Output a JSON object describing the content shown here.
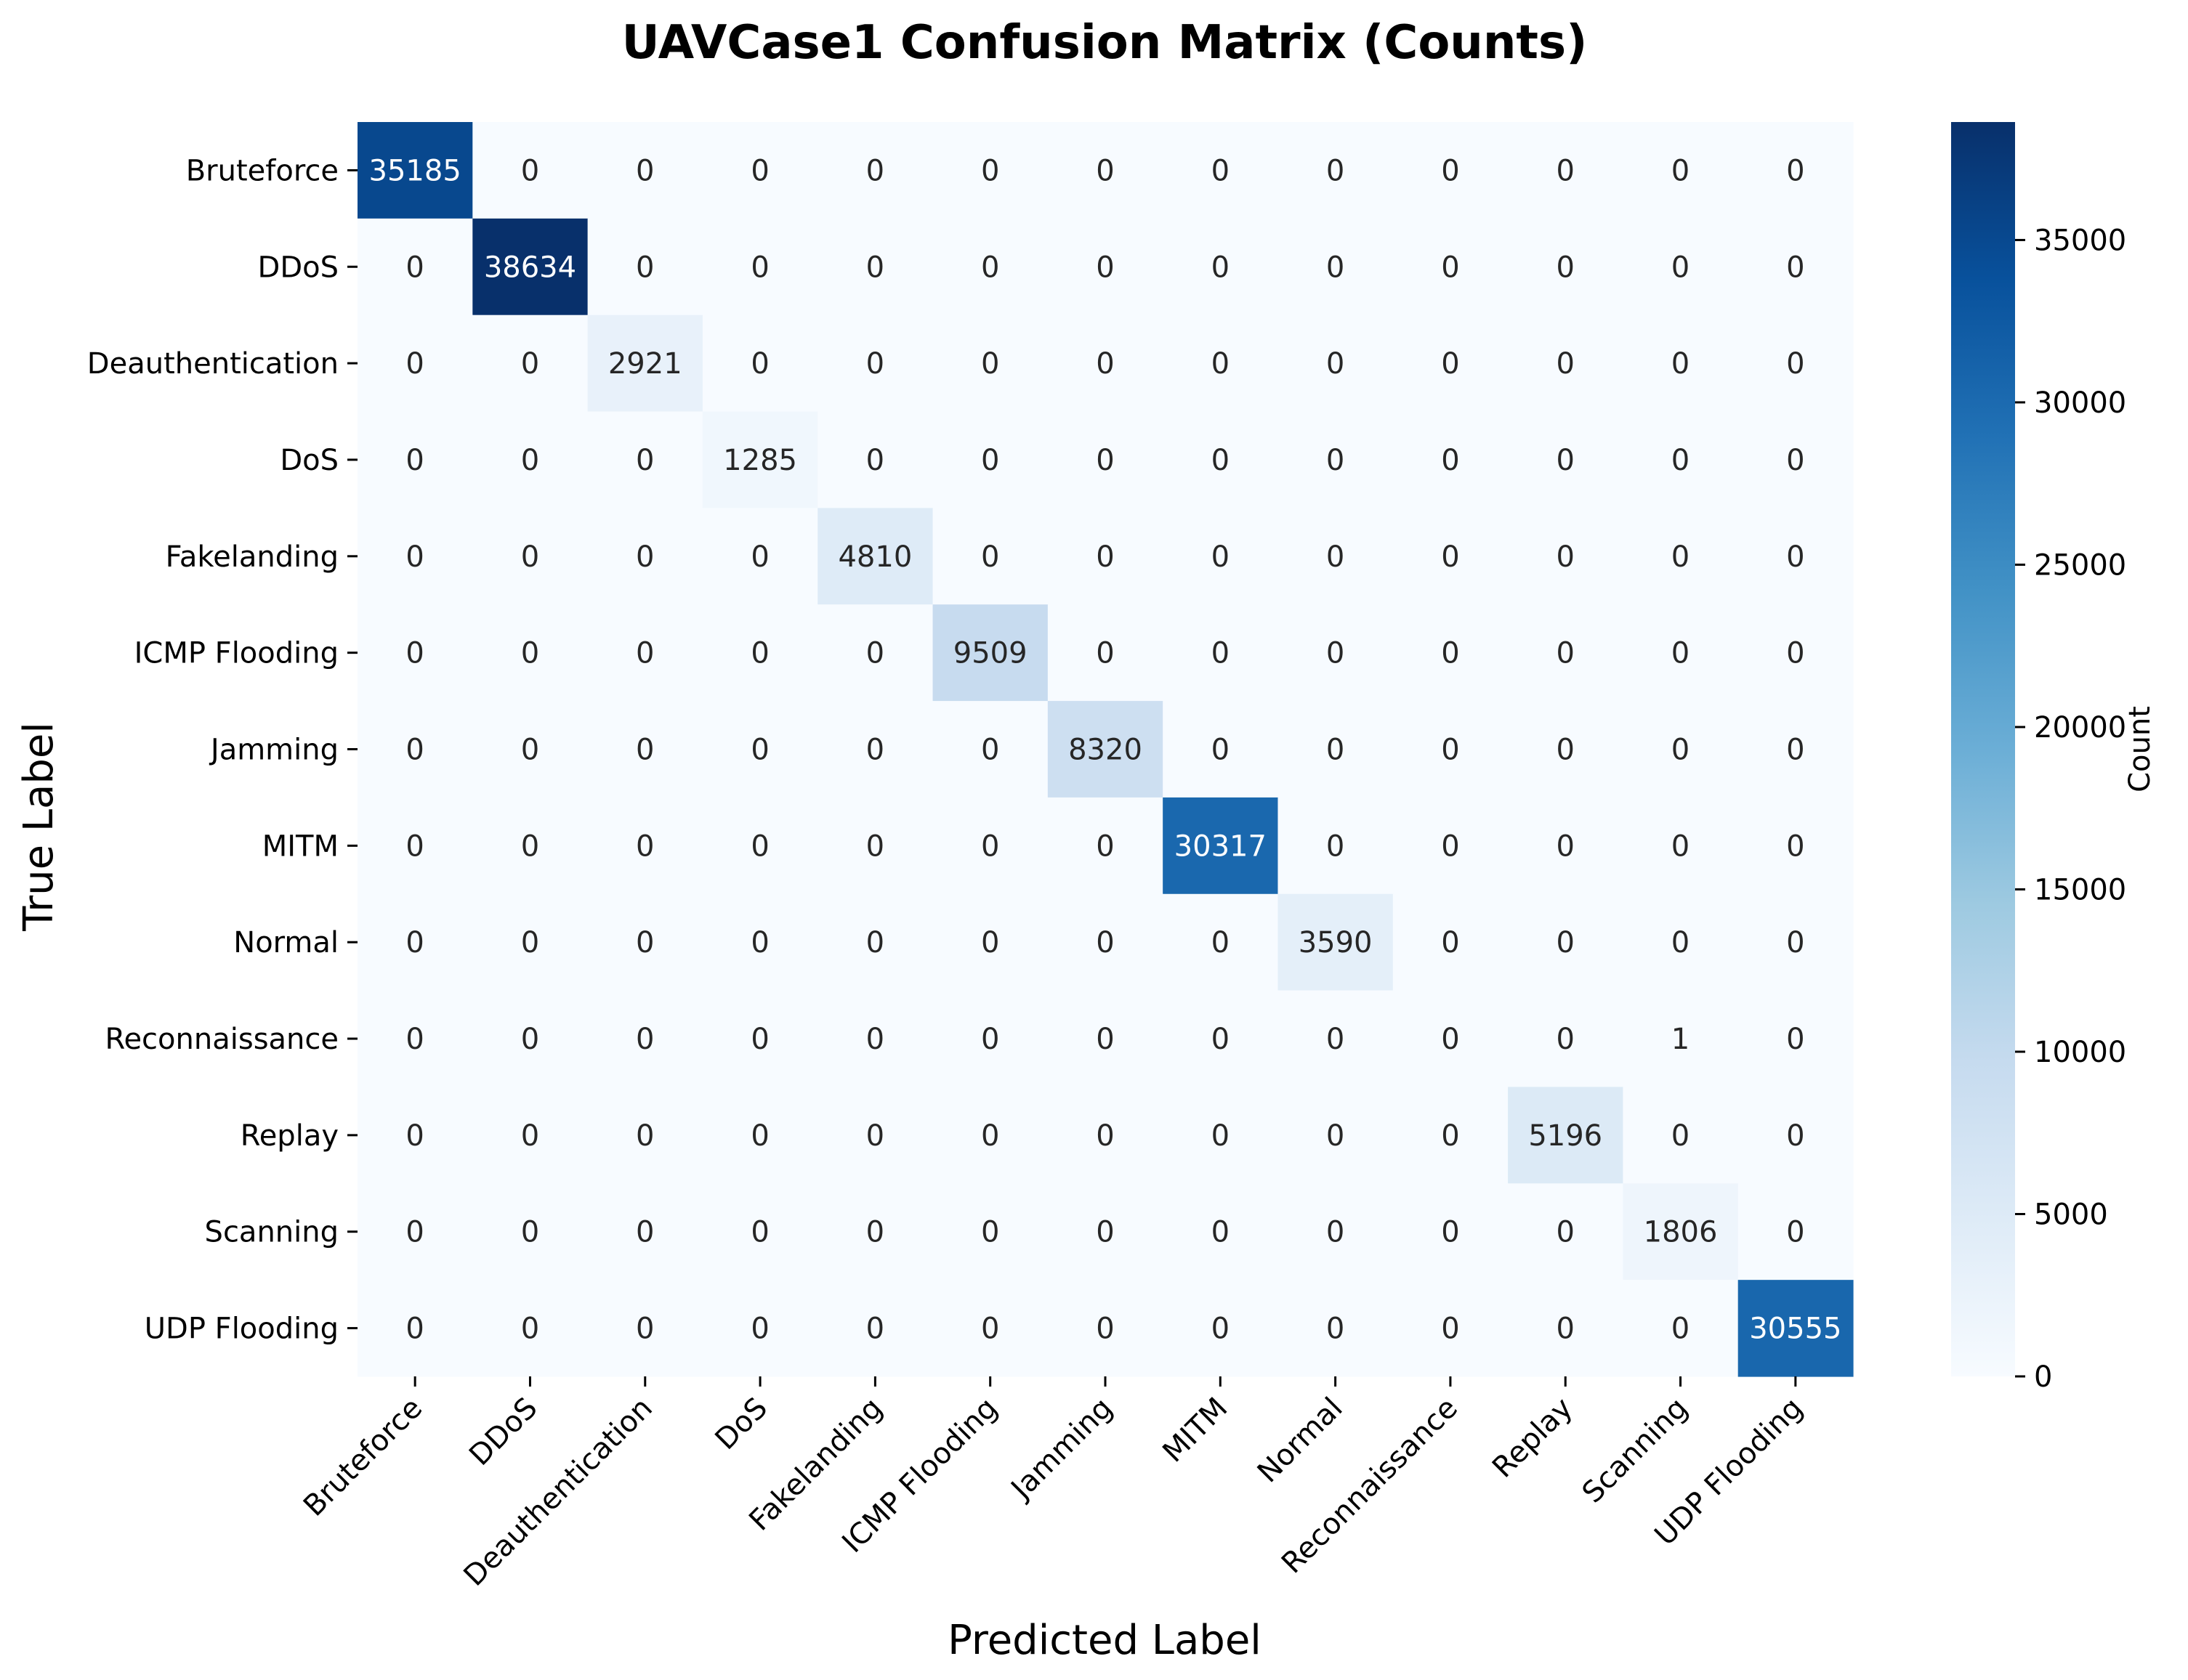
{
  "chart_data": {
    "type": "heatmap",
    "title": "UAVCase1 Confusion Matrix (Counts)",
    "xlabel": "Predicted Label",
    "ylabel": "True Label",
    "x_categories": [
      "Bruteforce",
      "DDoS",
      "Deauthentication",
      "DoS",
      "Fakelanding",
      "ICMP Flooding",
      "Jamming",
      "MITM",
      "Normal",
      "Reconnaissance",
      "Replay",
      "Scanning",
      "UDP Flooding"
    ],
    "y_categories": [
      "Bruteforce",
      "DDoS",
      "Deauthentication",
      "DoS",
      "Fakelanding",
      "ICMP Flooding",
      "Jamming",
      "MITM",
      "Normal",
      "Reconnaissance",
      "Replay",
      "Scanning",
      "UDP Flooding"
    ],
    "values": [
      [
        35185,
        0,
        0,
        0,
        0,
        0,
        0,
        0,
        0,
        0,
        0,
        0,
        0
      ],
      [
        0,
        38634,
        0,
        0,
        0,
        0,
        0,
        0,
        0,
        0,
        0,
        0,
        0
      ],
      [
        0,
        0,
        2921,
        0,
        0,
        0,
        0,
        0,
        0,
        0,
        0,
        0,
        0
      ],
      [
        0,
        0,
        0,
        1285,
        0,
        0,
        0,
        0,
        0,
        0,
        0,
        0,
        0
      ],
      [
        0,
        0,
        0,
        0,
        4810,
        0,
        0,
        0,
        0,
        0,
        0,
        0,
        0
      ],
      [
        0,
        0,
        0,
        0,
        0,
        9509,
        0,
        0,
        0,
        0,
        0,
        0,
        0
      ],
      [
        0,
        0,
        0,
        0,
        0,
        0,
        8320,
        0,
        0,
        0,
        0,
        0,
        0
      ],
      [
        0,
        0,
        0,
        0,
        0,
        0,
        0,
        30317,
        0,
        0,
        0,
        0,
        0
      ],
      [
        0,
        0,
        0,
        0,
        0,
        0,
        0,
        0,
        3590,
        0,
        0,
        0,
        0
      ],
      [
        0,
        0,
        0,
        0,
        0,
        0,
        0,
        0,
        0,
        0,
        0,
        1,
        0
      ],
      [
        0,
        0,
        0,
        0,
        0,
        0,
        0,
        0,
        0,
        0,
        5196,
        0,
        0
      ],
      [
        0,
        0,
        0,
        0,
        0,
        0,
        0,
        0,
        0,
        0,
        0,
        1806,
        0
      ],
      [
        0,
        0,
        0,
        0,
        0,
        0,
        0,
        0,
        0,
        0,
        0,
        0,
        30555
      ]
    ],
    "colorscale": "Blues",
    "vmin": 0,
    "vmax": 38634,
    "colorbar": {
      "label": "Count",
      "ticks": [
        0,
        5000,
        10000,
        15000,
        20000,
        25000,
        30000,
        35000
      ]
    },
    "x_tick_rotation": 45
  }
}
